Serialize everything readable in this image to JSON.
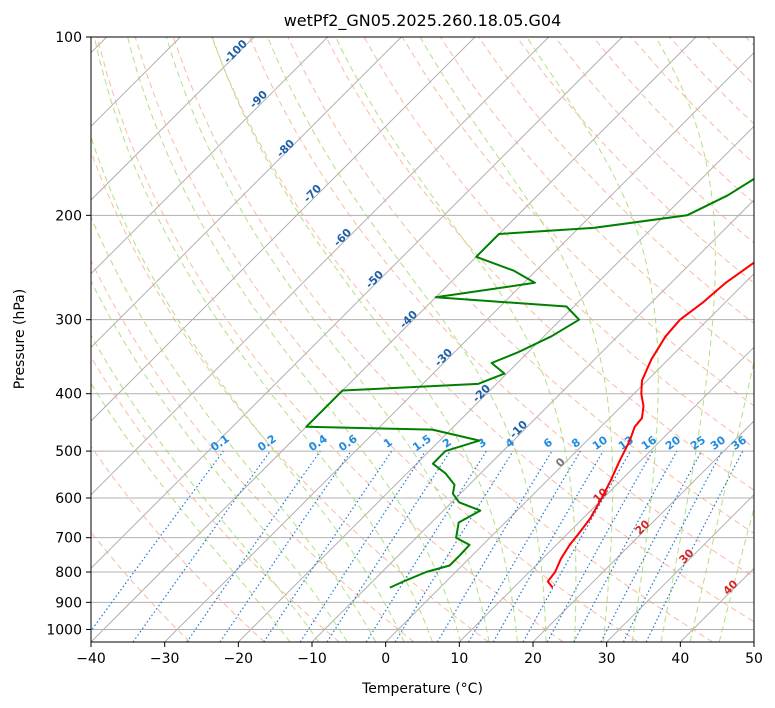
{
  "chart_data": {
    "type": "line",
    "title": "wetPf2_GN05.2025.260.18.05.G04",
    "xlabel": "Temperature (°C)",
    "ylabel": "Pressure (hPa)",
    "xlim": [
      -40,
      50
    ],
    "ylim": [
      1050,
      100
    ],
    "x_ticks": [
      -40,
      -30,
      -20,
      -10,
      0,
      10,
      20,
      30,
      40,
      50
    ],
    "x_tick_labels": [
      "−40",
      "−30",
      "−20",
      "−10",
      "0",
      "10",
      "20",
      "30",
      "40",
      "50"
    ],
    "y_ticks": [
      100,
      200,
      300,
      400,
      500,
      600,
      700,
      800,
      900,
      1000
    ],
    "y_tick_labels": [
      "100",
      "200",
      "300",
      "400",
      "500",
      "600",
      "700",
      "800",
      "900",
      "1000"
    ],
    "colors": {
      "temperature": "#ff0000",
      "dewpoint": "#008000",
      "isotherm": "#b0b0b0",
      "isobar": "#b0b0b0",
      "dry_adiabat": "#f4a582",
      "moist_adiabat": "#a6d96a",
      "mixing_ratio": "#1f78d4",
      "dry_label": "#d62728",
      "moist_label": "#1f5fa8",
      "mixing_label": "#1f8ae0"
    },
    "series": [
      {
        "name": "Temperature",
        "points": [
          [
            15.3,
            850
          ],
          [
            13.8,
            830
          ],
          [
            13.5,
            800
          ],
          [
            12.5,
            760
          ],
          [
            11.8,
            720
          ],
          [
            11.5,
            690
          ],
          [
            11.0,
            650
          ],
          [
            9.8,
            600
          ],
          [
            8.6,
            560
          ],
          [
            7.2,
            520
          ],
          [
            5.8,
            480
          ],
          [
            4.6,
            455
          ],
          [
            4.4,
            440
          ],
          [
            3.0,
            420
          ],
          [
            1.0,
            400
          ],
          [
            -0.7,
            380
          ],
          [
            -2.3,
            350
          ],
          [
            -3.5,
            320
          ],
          [
            -3.8,
            300
          ],
          [
            -3.0,
            280
          ],
          [
            -2.6,
            260
          ],
          [
            -1.5,
            240
          ],
          [
            0.8,
            225
          ],
          [
            4.5,
            210
          ],
          [
            6.2,
            195
          ],
          [
            7.1,
            180
          ],
          [
            9.4,
            165
          ],
          [
            12.8,
            152
          ],
          [
            14.4,
            140
          ],
          [
            16.4,
            130
          ],
          [
            18.8,
            120
          ],
          [
            19.8,
            110
          ],
          [
            21.0,
            100
          ]
        ]
      },
      {
        "name": "Dewpoint",
        "points": [
          [
            -6.8,
            850
          ],
          [
            -5.8,
            830
          ],
          [
            -4.0,
            800
          ],
          [
            -1.7,
            780
          ],
          [
            -1.7,
            750
          ],
          [
            -1.8,
            720
          ],
          [
            -4.6,
            700
          ],
          [
            -6.3,
            660
          ],
          [
            -5.0,
            630
          ],
          [
            -9.0,
            610
          ],
          [
            -11.0,
            590
          ],
          [
            -12.0,
            570
          ],
          [
            -14.8,
            545
          ],
          [
            -17.8,
            525
          ],
          [
            -17.8,
            500
          ],
          [
            -14.6,
            480
          ],
          [
            -22.5,
            460
          ],
          [
            -40,
            455
          ],
          [
            -40,
            395
          ],
          [
            -22.5,
            385
          ],
          [
            -20.3,
            370
          ],
          [
            -23.5,
            355
          ],
          [
            -21.3,
            340
          ],
          [
            -19.0,
            320
          ],
          [
            -17.5,
            300
          ],
          [
            -21.0,
            285
          ],
          [
            -40,
            275
          ],
          [
            -28.5,
            260
          ],
          [
            -33.0,
            248
          ],
          [
            -40,
            235
          ],
          [
            -40,
            215
          ],
          [
            -28.0,
            210
          ],
          [
            -17.0,
            200
          ],
          [
            -14.2,
            185
          ],
          [
            -12.4,
            170
          ],
          [
            -10.4,
            160
          ],
          [
            -8.6,
            150
          ],
          [
            -7.5,
            140
          ],
          [
            -7.5,
            130
          ],
          [
            -6.2,
            120
          ],
          [
            -4.4,
            110
          ],
          [
            -3.6,
            100
          ]
        ]
      }
    ],
    "mixing_ratio_labels": [
      "0.1",
      "0.2",
      "0.4",
      "0.6",
      "1",
      "1.5",
      "2",
      "3",
      "4",
      "6",
      "8",
      "10",
      "13",
      "16",
      "20",
      "25",
      "30",
      "36"
    ],
    "moist_adiabat_labels": [
      "-100",
      "-90",
      "-80",
      "-70",
      "-60",
      "-50",
      "-40",
      "-30",
      "-20",
      "-10",
      "0"
    ],
    "dry_adiabat_labels": [
      "10",
      "20",
      "30",
      "40"
    ]
  }
}
